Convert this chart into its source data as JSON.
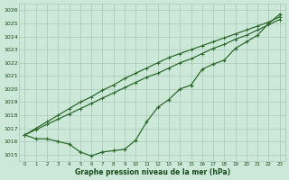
{
  "title": "Graphe pression niveau de la mer (hPa)",
  "xlabel_hours": [
    0,
    1,
    2,
    3,
    4,
    5,
    6,
    7,
    8,
    9,
    10,
    11,
    12,
    13,
    14,
    15,
    16,
    17,
    18,
    19,
    20,
    21,
    22,
    23
  ],
  "series1": [
    1016.5,
    1016.2,
    1016.2,
    1016.0,
    1015.8,
    1015.2,
    1014.9,
    1015.2,
    1015.3,
    1015.4,
    1016.1,
    1017.5,
    1018.6,
    1019.2,
    1020.0,
    1020.3,
    1021.5,
    1021.9,
    1022.2,
    1023.1,
    1023.6,
    1024.1,
    1025.0,
    1025.7
  ],
  "series2": [
    1016.5,
    1017.0,
    1017.5,
    1018.0,
    1018.5,
    1019.0,
    1019.4,
    1019.9,
    1020.3,
    1020.8,
    1021.2,
    1021.6,
    1022.0,
    1022.4,
    1022.7,
    1023.0,
    1023.3,
    1023.6,
    1023.9,
    1024.2,
    1024.5,
    1024.8,
    1025.1,
    1025.5
  ],
  "series3": [
    1016.5,
    1016.9,
    1017.3,
    1017.7,
    1018.1,
    1018.5,
    1018.9,
    1019.3,
    1019.7,
    1020.1,
    1020.5,
    1020.9,
    1021.2,
    1021.6,
    1022.0,
    1022.3,
    1022.7,
    1023.1,
    1023.4,
    1023.8,
    1024.1,
    1024.5,
    1024.9,
    1025.3
  ],
  "line_color": "#2d6a2d",
  "marker_color": "#2d6a2d",
  "bg_color": "#cce8d8",
  "grid_color": "#aac8b8",
  "text_color": "#1a4a1a",
  "ylim_min": 1014.5,
  "ylim_max": 1026.5,
  "yticks": [
    1015,
    1016,
    1017,
    1018,
    1019,
    1020,
    1021,
    1022,
    1023,
    1024,
    1025,
    1026
  ]
}
